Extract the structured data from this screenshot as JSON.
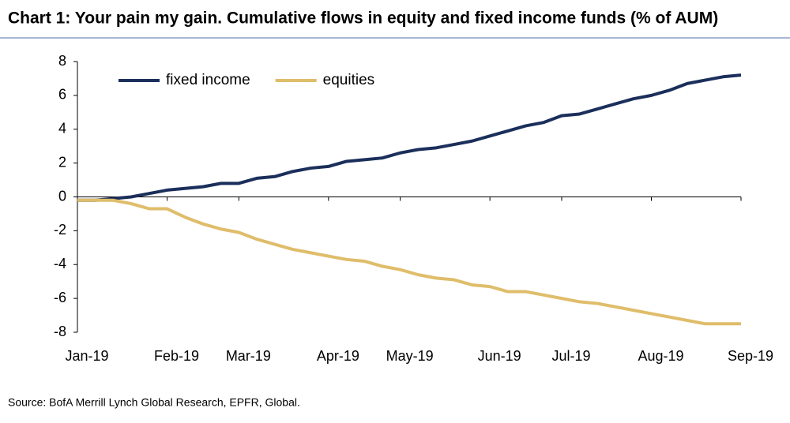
{
  "chart_data": {
    "type": "line",
    "title": "Chart 1: Your pain my gain. Cumulative flows in equity and fixed income funds (% of AUM)",
    "source": "Source: BofA Merrill Lynch Global Research, EPFR, Global.",
    "categories": [
      "Jan-19",
      null,
      null,
      null,
      null,
      "Feb-19",
      null,
      null,
      null,
      "Mar-19",
      null,
      null,
      null,
      null,
      "Apr-19",
      null,
      null,
      null,
      "May-19",
      null,
      null,
      null,
      null,
      "Jun-19",
      null,
      null,
      null,
      "Jul-19",
      null,
      null,
      null,
      null,
      "Aug-19",
      null,
      null,
      null,
      null,
      "Sep-19"
    ],
    "series": [
      {
        "name": "fixed income",
        "color": "#1b2f5b",
        "values": [
          -0.2,
          -0.2,
          -0.1,
          0.0,
          0.2,
          0.4,
          0.5,
          0.6,
          0.8,
          0.8,
          1.1,
          1.2,
          1.5,
          1.7,
          1.8,
          2.1,
          2.2,
          2.3,
          2.6,
          2.8,
          2.9,
          3.1,
          3.3,
          3.6,
          3.9,
          4.2,
          4.4,
          4.8,
          4.9,
          5.2,
          5.5,
          5.8,
          6.0,
          6.3,
          6.7,
          6.9,
          7.1,
          7.2
        ]
      },
      {
        "name": "equities",
        "color": "#dfbd6a",
        "values": [
          -0.2,
          -0.2,
          -0.2,
          -0.4,
          -0.7,
          -0.7,
          -1.2,
          -1.6,
          -1.9,
          -2.1,
          -2.5,
          -2.8,
          -3.1,
          -3.3,
          -3.5,
          -3.7,
          -3.8,
          -4.1,
          -4.3,
          -4.6,
          -4.8,
          -4.9,
          -5.2,
          -5.3,
          -5.6,
          -5.6,
          -5.8,
          -6.0,
          -6.2,
          -6.3,
          -6.5,
          -6.7,
          -6.9,
          -7.1,
          -7.3,
          -7.5,
          -7.5,
          -7.5
        ]
      }
    ],
    "ylim": [
      -8,
      8
    ],
    "yticks": [
      -8,
      -6,
      -4,
      -2,
      0,
      2,
      4,
      6,
      8
    ],
    "legend": "top-left",
    "grid": false
  }
}
